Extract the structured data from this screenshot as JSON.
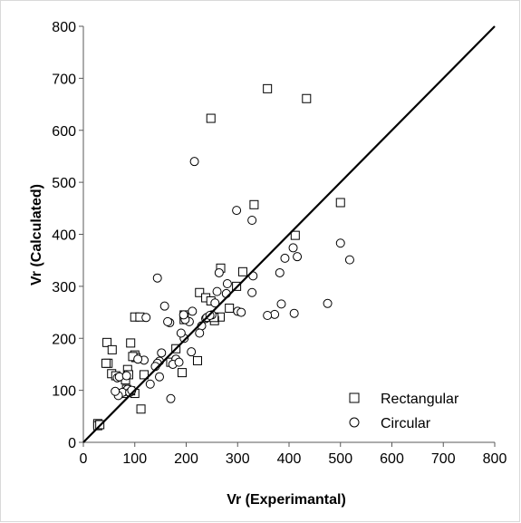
{
  "chart_data": {
    "type": "scatter",
    "title": "",
    "xlabel": "Vr (Experimantal)",
    "ylabel": "Vr (Calculated)",
    "xlim": [
      0,
      800
    ],
    "ylim": [
      0,
      800
    ],
    "x_ticks": [
      "0",
      "100",
      "200",
      "300",
      "400",
      "500",
      "600",
      "700",
      "800"
    ],
    "y_ticks": [
      "0",
      "100",
      "200",
      "300",
      "400",
      "500",
      "600",
      "700",
      "800"
    ],
    "grid": false,
    "legend_position": "bottom-right",
    "reference_line": {
      "from": [
        0,
        0
      ],
      "to": [
        800,
        800
      ]
    },
    "series": [
      {
        "name": "Rectangular",
        "marker": "square",
        "x": [
          358,
          434,
          248,
          332,
          500,
          412,
          267,
          310,
          226,
          238,
          248,
          284,
          266,
          298,
          100,
          110,
          222,
          196,
          196,
          92,
          255,
          46,
          56,
          100,
          102,
          96,
          48,
          44,
          86,
          88,
          254,
          55,
          63,
          82,
          78,
          100,
          92,
          84,
          112,
          118,
          170,
          180,
          192,
          28,
          28,
          32
        ],
        "y": [
          680,
          661,
          623,
          457,
          461,
          398,
          335,
          328,
          288,
          278,
          272,
          258,
          241,
          300,
          241,
          241,
          157,
          245,
          236,
          191,
          234,
          192,
          178,
          168,
          163,
          165,
          152,
          152,
          140,
          130,
          240,
          132,
          128,
          120,
          94,
          94,
          99,
          102,
          64,
          130,
          154,
          180,
          134,
          36,
          32,
          34
        ]
      },
      {
        "name": "Circular",
        "marker": "circle",
        "x": [
          216,
          298,
          328,
          144,
          260,
          392,
          416,
          408,
          382,
          500,
          518,
          475,
          410,
          372,
          358,
          385,
          330,
          328,
          300,
          307,
          280,
          278,
          264,
          256,
          250,
          238,
          230,
          226,
          212,
          206,
          196,
          190,
          180,
          174,
          168,
          158,
          152,
          148,
          144,
          140,
          122,
          210,
          186,
          130,
          170,
          164,
          148,
          118,
          106,
          82,
          86,
          76,
          68,
          62,
          66,
          70,
          84,
          90,
          94,
          198,
          195,
          240,
          246
        ],
        "y": [
          540,
          446,
          427,
          316,
          290,
          354,
          357,
          374,
          326,
          383,
          351,
          267,
          248,
          246,
          244,
          266,
          320,
          288,
          252,
          250,
          305,
          286,
          326,
          268,
          245,
          238,
          224,
          210,
          252,
          232,
          200,
          210,
          160,
          150,
          230,
          262,
          172,
          156,
          152,
          146,
          240,
          174,
          154,
          112,
          84,
          232,
          126,
          158,
          160,
          98,
          102,
          96,
          90,
          98,
          124,
          126,
          128,
          96,
          100,
          236,
          245,
          240,
          244
        ]
      }
    ]
  }
}
